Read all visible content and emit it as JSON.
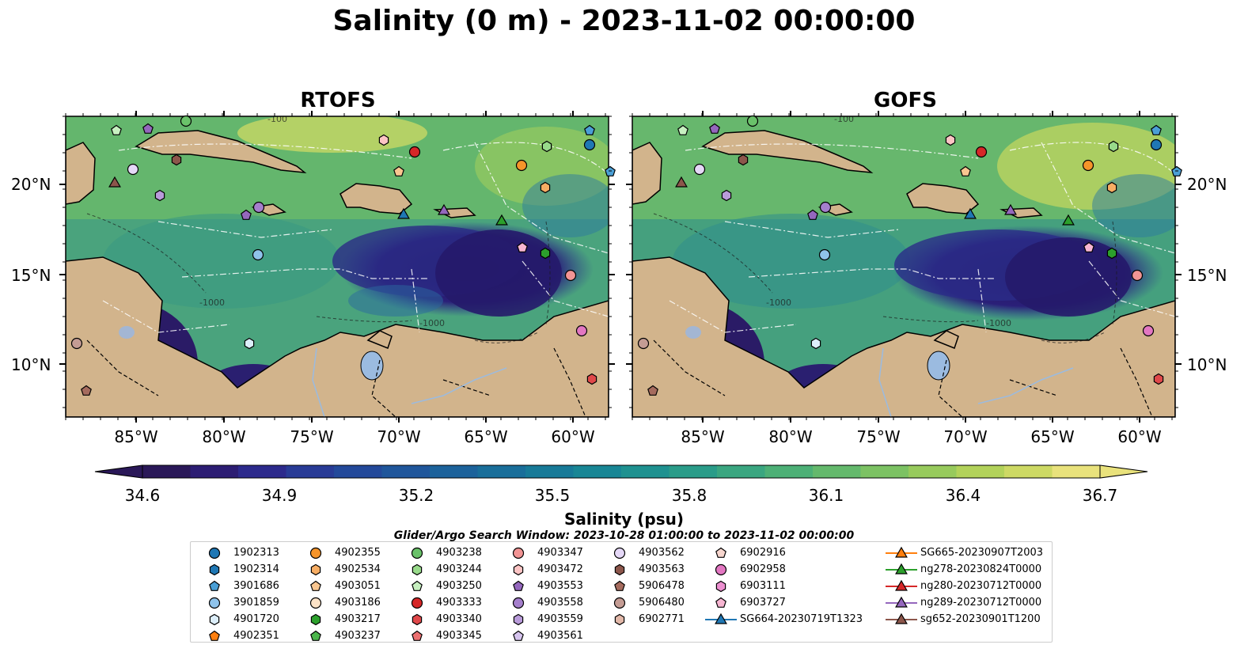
{
  "title": "Salinity (0 m) - 2023-11-02 00:00:00",
  "maps": [
    {
      "title": "RTOFS"
    },
    {
      "title": "GOFS"
    }
  ],
  "axes": {
    "lon_labels": [
      "85°W",
      "80°W",
      "75°W",
      "70°W",
      "65°W",
      "60°W"
    ],
    "lat_labels": [
      "20°N",
      "15°N",
      "10°N"
    ]
  },
  "contour_labels": [
    "-1000",
    "-100",
    "-1000"
  ],
  "colorbar": {
    "label": "Salinity (psu)",
    "ticks": [
      "34.6",
      "34.9",
      "35.2",
      "35.5",
      "35.8",
      "36.1",
      "36.4",
      "36.7"
    ],
    "colors": [
      "#2a1858",
      "#2c1d73",
      "#2c2a8c",
      "#283b96",
      "#23499a",
      "#1f569b",
      "#1c629b",
      "#196e9a",
      "#177a98",
      "#188695",
      "#1e9190",
      "#2a9c89",
      "#3aa680",
      "#4db076",
      "#64b96c",
      "#7cc263",
      "#97ca5c",
      "#b2d25a",
      "#cdd964",
      "#e9e27c"
    ]
  },
  "search_window": "Glider/Argo Search Window: 2023-10-28 01:00:00 to 2023-11-02 00:00:00",
  "legend": {
    "columns": [
      [
        {
          "label": "1902313",
          "shape": "circle",
          "color": "#1f77b4"
        },
        {
          "label": "1902314",
          "shape": "hexagon",
          "color": "#1f77b4"
        },
        {
          "label": "3901686",
          "shape": "pentagon",
          "color": "#4a9fd6"
        },
        {
          "label": "3901859",
          "shape": "circle",
          "color": "#8fc3eb"
        },
        {
          "label": "4901720",
          "shape": "hexagon",
          "color": "#dceefa"
        },
        {
          "label": "4902351",
          "shape": "pentagon",
          "color": "#ff7f0e"
        }
      ],
      [
        {
          "label": "4902355",
          "shape": "circle",
          "color": "#f5942a"
        },
        {
          "label": "4902534",
          "shape": "hexagon",
          "color": "#f7ad63"
        },
        {
          "label": "4903051",
          "shape": "pentagon",
          "color": "#f9c690"
        },
        {
          "label": "4903186",
          "shape": "circle",
          "color": "#fde3c7"
        },
        {
          "label": "4903217",
          "shape": "hexagon",
          "color": "#2ca02c"
        },
        {
          "label": "4903237",
          "shape": "pentagon",
          "color": "#4cb64c"
        }
      ],
      [
        {
          "label": "4903238",
          "shape": "circle",
          "color": "#6ac26a"
        },
        {
          "label": "4903244",
          "shape": "hexagon",
          "color": "#98da8a"
        },
        {
          "label": "4903250",
          "shape": "pentagon",
          "color": "#c7f0c0"
        },
        {
          "label": "4903333",
          "shape": "circle",
          "color": "#d62728"
        },
        {
          "label": "4903340",
          "shape": "hexagon",
          "color": "#e0484a"
        },
        {
          "label": "4903345",
          "shape": "pentagon",
          "color": "#ec7071"
        }
      ],
      [
        {
          "label": "4903347",
          "shape": "circle",
          "color": "#f29494"
        },
        {
          "label": "4903472",
          "shape": "hexagon",
          "color": "#fcc4c4"
        },
        {
          "label": "4903553",
          "shape": "pentagon",
          "color": "#9467bd"
        },
        {
          "label": "4903558",
          "shape": "circle",
          "color": "#a57fcc"
        },
        {
          "label": "4903559",
          "shape": "hexagon",
          "color": "#b99bda"
        },
        {
          "label": "4903561",
          "shape": "pentagon",
          "color": "#d6c4ee"
        }
      ],
      [
        {
          "label": "4903562",
          "shape": "circle",
          "color": "#e5d8f7"
        },
        {
          "label": "4903563",
          "shape": "hexagon",
          "color": "#8c564b"
        },
        {
          "label": "5906478",
          "shape": "pentagon",
          "color": "#a56b5e"
        },
        {
          "label": "5906480",
          "shape": "circle",
          "color": "#c49c94"
        },
        {
          "label": "6902771",
          "shape": "hexagon",
          "color": "#e2b8a9"
        }
      ],
      [
        {
          "label": "6902916",
          "shape": "pentagon",
          "color": "#f7d6ce"
        },
        {
          "label": "6902958",
          "shape": "circle",
          "color": "#e377c2"
        },
        {
          "label": "6903111",
          "shape": "hexagon",
          "color": "#ec8fd0"
        },
        {
          "label": "6903727",
          "shape": "pentagon",
          "color": "#f7b6d2"
        },
        {
          "label": "SG664-20230719T1323",
          "shape": "triangle-line",
          "color": "#1f77b4"
        }
      ],
      [
        {
          "label": "SG665-20230907T2003",
          "shape": "triangle-line",
          "color": "#ff7f0e"
        },
        {
          "label": "ng278-20230824T0000",
          "shape": "triangle-line",
          "color": "#2ca02c"
        },
        {
          "label": "ng280-20230712T0000",
          "shape": "triangle-line",
          "color": "#d62728"
        },
        {
          "label": "ng289-20230712T0000",
          "shape": "triangle-line",
          "color": "#9467bd"
        },
        {
          "label": "sg652-20230901T1200",
          "shape": "triangle-line",
          "color": "#8c564b"
        }
      ]
    ]
  }
}
